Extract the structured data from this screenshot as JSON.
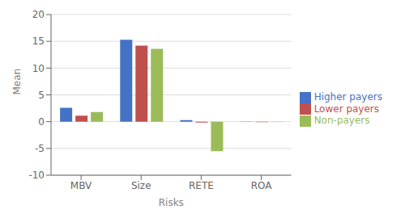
{
  "chart_data": {
    "type": "bar",
    "categories": [
      "MBV",
      "Size",
      "RETE",
      "ROA"
    ],
    "series": [
      {
        "name": "Higher payers",
        "color": "#4472C4",
        "values": [
          2.6,
          15.3,
          0.3,
          -0.05
        ]
      },
      {
        "name": "Lower payers",
        "color": "#C0504D",
        "values": [
          1.1,
          14.2,
          -0.15,
          -0.1
        ]
      },
      {
        "name": "Non-payers",
        "color": "#9BBB59",
        "values": [
          1.8,
          13.6,
          -5.5,
          -0.05
        ]
      }
    ],
    "xlabel": "Risks",
    "ylabel": "Mean",
    "ylim": [
      -10,
      20
    ],
    "yticks": [
      -10,
      -5,
      0,
      5,
      10,
      15,
      20
    ],
    "grid": true,
    "legend": "right"
  }
}
